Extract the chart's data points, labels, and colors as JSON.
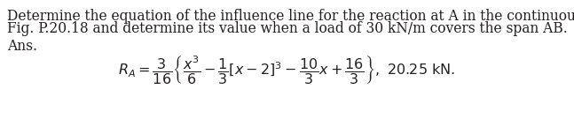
{
  "line1": "Determine the equation of the influence line for the reaction at A in the continuous beam shown in",
  "line2": "Fig. P.20.18 and determine its value when a load of 30 kN/m covers the span AB.",
  "ans_label": "Ans.",
  "bg_color": "#ffffff",
  "text_color": "#231f20",
  "font_size_body": 11.2,
  "font_size_math": 11.5
}
